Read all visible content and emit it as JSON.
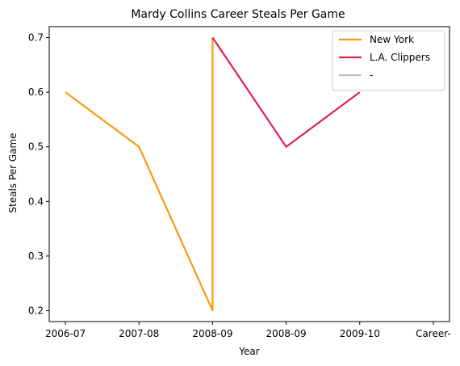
{
  "chart_data": {
    "type": "line",
    "title": "Mardy Collins Career Steals Per Game",
    "xlabel": "Year",
    "ylabel": "Steals Per Game",
    "categories": [
      "2006-07",
      "2007-08",
      "2008-09",
      "2008-09",
      "2009-10",
      "Career-"
    ],
    "x_positions": [
      0,
      1,
      2,
      3,
      4,
      5
    ],
    "ylim": [
      0.18,
      0.72
    ],
    "yticks": [
      0.2,
      0.3,
      0.4,
      0.5,
      0.6,
      0.7
    ],
    "ytick_labels": [
      "0.2",
      "0.3",
      "0.4",
      "0.5",
      "0.6",
      "0.7"
    ],
    "grid": false,
    "legend_position": "top-right",
    "series": [
      {
        "name": "New York",
        "color": "#f39c12",
        "points": [
          [
            0,
            0.6
          ],
          [
            1,
            0.5
          ],
          [
            2,
            0.2
          ],
          [
            2,
            0.7
          ]
        ]
      },
      {
        "name": "L.A. Clippers",
        "color": "#e0204f",
        "points": [
          [
            2,
            0.7
          ],
          [
            3,
            0.5
          ],
          [
            4,
            0.6
          ]
        ]
      },
      {
        "name": "-",
        "color": "#bfbfbf",
        "points": []
      }
    ]
  }
}
